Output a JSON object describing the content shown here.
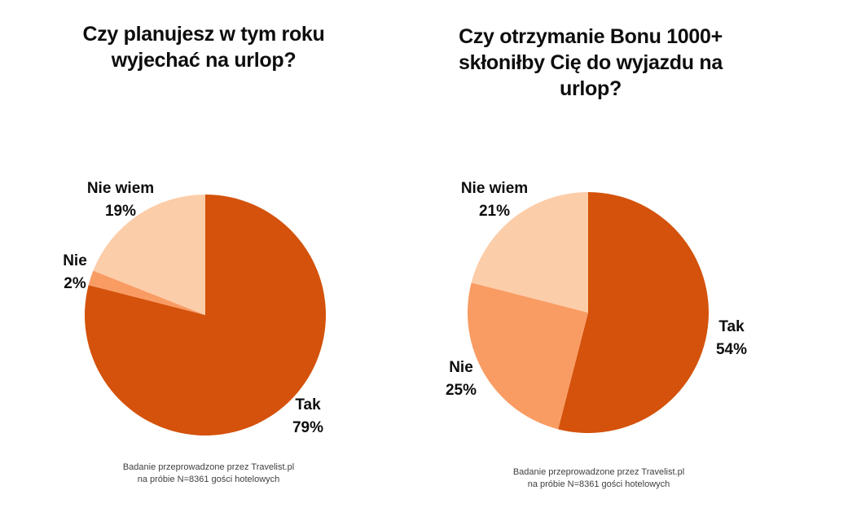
{
  "page": {
    "background": "#ffffff",
    "text_color": "#0d0d0d"
  },
  "chart_data": [
    {
      "type": "pie",
      "title": "Czy planujesz w tym roku wyjechać na urlop?",
      "title_lines": [
        "Czy planujesz w tym roku",
        "wyjechać na urlop?"
      ],
      "categories": [
        "Tak",
        "Nie",
        "Nie wiem"
      ],
      "values": [
        79,
        2,
        19
      ],
      "colors": [
        "#d4520b",
        "#f99c63",
        "#fccda9"
      ],
      "start_angle_deg": 0,
      "direction": "clockwise",
      "legend_position": "none",
      "slices": [
        {
          "name": "Tak",
          "pct": "79%"
        },
        {
          "name": "Nie",
          "pct": "2%"
        },
        {
          "name": "Nie wiem",
          "pct": "19%"
        }
      ],
      "footer_line1": "Badanie przeprowadzone przez Travelist.pl",
      "footer_line2": "na próbie N=8361 gości hotelowych"
    },
    {
      "type": "pie",
      "title": "Czy otrzymanie Bonu 1000+ skłoniłby Cię do wyjazdu na urlop?",
      "title_lines": [
        "Czy otrzymanie Bonu 1000+",
        "skłoniłby Cię do wyjazdu na",
        "urlop?"
      ],
      "categories": [
        "Tak",
        "Nie",
        "Nie wiem"
      ],
      "values": [
        54,
        25,
        21
      ],
      "colors": [
        "#d4520b",
        "#f99c63",
        "#fccda9"
      ],
      "start_angle_deg": 0,
      "direction": "clockwise",
      "legend_position": "none",
      "slices": [
        {
          "name": "Tak",
          "pct": "54%"
        },
        {
          "name": "Nie",
          "pct": "25%"
        },
        {
          "name": "Nie wiem",
          "pct": "21%"
        }
      ],
      "footer_line1": "Badanie przeprowadzone przez Travelist.pl",
      "footer_line2": "na próbie N=8361 gości hotelowych"
    }
  ]
}
